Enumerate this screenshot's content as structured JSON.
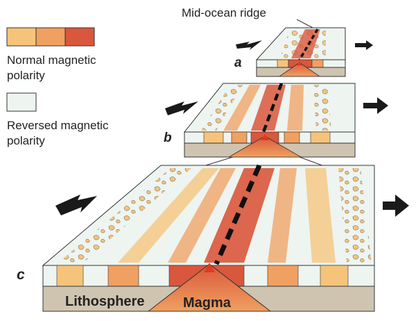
{
  "labels": {
    "ridge": "Mid-ocean ridge",
    "legend_normal_line1": "Normal magnetic",
    "legend_normal_line2": "polarity",
    "legend_reversed_line1": "Reversed magnetic",
    "legend_reversed_line2": "polarity",
    "stage_a": "a",
    "stage_b": "b",
    "stage_c": "c",
    "lithosphere": "Lithosphere",
    "magma": "Magma"
  },
  "colors": {
    "normal_light": "#f5c47a",
    "normal_mid": "#f0a060",
    "normal_dark": "#d9573c",
    "reversed": "#eef4f0",
    "lithosphere": "#cfc4b0",
    "magma": "#e8864f",
    "outline": "#333333",
    "arrow": "#1a1a1a"
  },
  "icons": {
    "spreading_arrow": "arrow-icon"
  }
}
